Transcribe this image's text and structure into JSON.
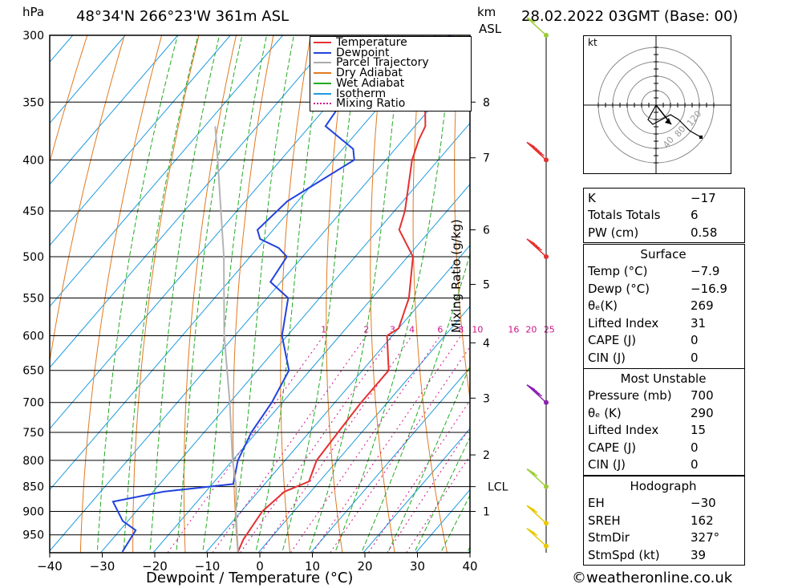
{
  "header": {
    "location": "48°34'N  266°23'W  361m  ASL",
    "datetime": "28.02.2022  03GMT  (Base: 00)",
    "hpa_unit": "hPa",
    "km_unit": "km",
    "asl_unit": "ASL"
  },
  "footer": {
    "website": "©weatheronline.co.uk"
  },
  "chart_data": {
    "type": "line",
    "subtype": "skew-T log-P",
    "xlabel": "Dewpoint / Temperature (°C)",
    "ylabel": "",
    "mr_label": "Mixing Ratio (g/kg)",
    "x_ticks": [
      "−40",
      "−30",
      "−20",
      "−10",
      "0",
      "10",
      "20",
      "30",
      "40"
    ],
    "p_levels": [
      300,
      350,
      400,
      450,
      500,
      550,
      600,
      650,
      700,
      750,
      800,
      850,
      900,
      950
    ],
    "km_labels": [
      {
        "p": 350,
        "t": "8"
      },
      {
        "p": 398,
        "t": "7"
      },
      {
        "p": 470,
        "t": "6"
      },
      {
        "p": 533,
        "t": "5"
      },
      {
        "p": 610,
        "t": "4"
      },
      {
        "p": 693,
        "t": "3"
      },
      {
        "p": 790,
        "t": "2"
      },
      {
        "p": 850,
        "t": "LCL"
      },
      {
        "p": 900,
        "t": "1"
      }
    ],
    "mr_values": [
      "1",
      "2",
      "3",
      "4",
      "6",
      "8",
      "10",
      "16",
      "20",
      "25"
    ],
    "legend": [
      "Temperature",
      "Dewpoint",
      "Parcel Trajectory",
      "Dry Adiabat",
      "Wet Adiabat",
      "Isotherm",
      "Mixing Ratio"
    ],
    "colors": {
      "temperature": "#e53030",
      "dewpoint": "#2244dd",
      "parcel": "#b4b4b4",
      "dry_adiabat": "#e07a20",
      "wet_adiabat": "#22aa22",
      "isotherm": "#1e9be0",
      "mixing": "#d0108a"
    },
    "series": [
      {
        "name": "Temperature",
        "points": [
          [
            300,
            -51
          ],
          [
            330,
            -46
          ],
          [
            350,
            -42
          ],
          [
            370,
            -38
          ],
          [
            382,
            -37
          ],
          [
            400,
            -35
          ],
          [
            450,
            -28
          ],
          [
            470,
            -26
          ],
          [
            500,
            -19
          ],
          [
            550,
            -13
          ],
          [
            590,
            -10
          ],
          [
            600,
            -11
          ],
          [
            650,
            -5
          ],
          [
            700,
            -5
          ],
          [
            750,
            -4.5
          ],
          [
            800,
            -4
          ],
          [
            840,
            -2
          ],
          [
            860,
            -5
          ],
          [
            900,
            -6
          ],
          [
            960,
            -5
          ],
          [
            988,
            -4
          ]
        ]
      },
      {
        "name": "Dewpoint",
        "points": [
          [
            300,
            -48
          ],
          [
            320,
            -54
          ],
          [
            345,
            -58
          ],
          [
            370,
            -57
          ],
          [
            390,
            -48
          ],
          [
            400,
            -46
          ],
          [
            440,
            -52
          ],
          [
            470,
            -53
          ],
          [
            480,
            -51
          ],
          [
            490,
            -46
          ],
          [
            500,
            -43
          ],
          [
            530,
            -42
          ],
          [
            550,
            -36
          ],
          [
            600,
            -31
          ],
          [
            650,
            -24
          ],
          [
            700,
            -22
          ],
          [
            750,
            -21
          ],
          [
            800,
            -19
          ],
          [
            845,
            -16
          ],
          [
            860,
            -28
          ],
          [
            880,
            -36
          ],
          [
            920,
            -31
          ],
          [
            940,
            -27
          ],
          [
            988,
            -26
          ]
        ]
      },
      {
        "name": "Parcel Trajectory",
        "points": [
          [
            988,
            -4
          ],
          [
            900,
            -11
          ],
          [
            850,
            -15
          ],
          [
            800,
            -20
          ],
          [
            700,
            -30
          ],
          [
            600,
            -42
          ],
          [
            500,
            -55
          ],
          [
            400,
            -72
          ],
          [
            370,
            -78
          ]
        ]
      }
    ],
    "x_range": [
      -40,
      40
    ],
    "p_range": [
      300,
      990
    ],
    "grid": true,
    "wind_barbs": [
      {
        "p": 300,
        "color": "#9acd32",
        "speed": 5
      },
      {
        "p": 400,
        "color": "#e53030",
        "speed": 50
      },
      {
        "p": 500,
        "color": "#e53030",
        "speed": 40
      },
      {
        "p": 700,
        "color": "#8a20b0",
        "speed": 40
      },
      {
        "p": 850,
        "color": "#9acd32",
        "speed": 15
      },
      {
        "p": 925,
        "color": "#e8c800",
        "speed": 15
      },
      {
        "p": 975,
        "color": "#e8c800",
        "speed": 15
      }
    ]
  },
  "hodograph": {
    "unit": "kt",
    "rings": [
      "40",
      "80",
      "120"
    ],
    "points": [
      [
        0,
        0
      ],
      [
        -5,
        -9
      ],
      [
        -2,
        -12
      ],
      [
        9,
        -6
      ],
      [
        14,
        -9
      ],
      [
        21,
        -16
      ],
      [
        28,
        -20
      ]
    ]
  },
  "indices": {
    "general": [
      {
        "label": "K",
        "value": "−17"
      },
      {
        "label": "Totals Totals",
        "value": "6"
      },
      {
        "label": "PW (cm)",
        "value": "0.58"
      }
    ],
    "surface": {
      "title": "Surface",
      "rows": [
        {
          "label": "Temp (°C)",
          "value": "−7.9"
        },
        {
          "label": "Dewp (°C)",
          "value": "−16.9"
        },
        {
          "label": "θₑ(K)",
          "value": "269"
        },
        {
          "label": "Lifted Index",
          "value": "31"
        },
        {
          "label": "CAPE (J)",
          "value": "0"
        },
        {
          "label": "CIN (J)",
          "value": "0"
        }
      ]
    },
    "most_unstable": {
      "title": "Most Unstable",
      "rows": [
        {
          "label": "Pressure (mb)",
          "value": "700"
        },
        {
          "label": "θₑ (K)",
          "value": "290"
        },
        {
          "label": "Lifted Index",
          "value": "15"
        },
        {
          "label": "CAPE (J)",
          "value": "0"
        },
        {
          "label": "CIN (J)",
          "value": "0"
        }
      ]
    },
    "hodograph": {
      "title": "Hodograph",
      "rows": [
        {
          "label": "EH",
          "value": "−30"
        },
        {
          "label": "SREH",
          "value": "162"
        },
        {
          "label": "StmDir",
          "value": "327°"
        },
        {
          "label": "StmSpd (kt)",
          "value": "39"
        }
      ]
    }
  }
}
